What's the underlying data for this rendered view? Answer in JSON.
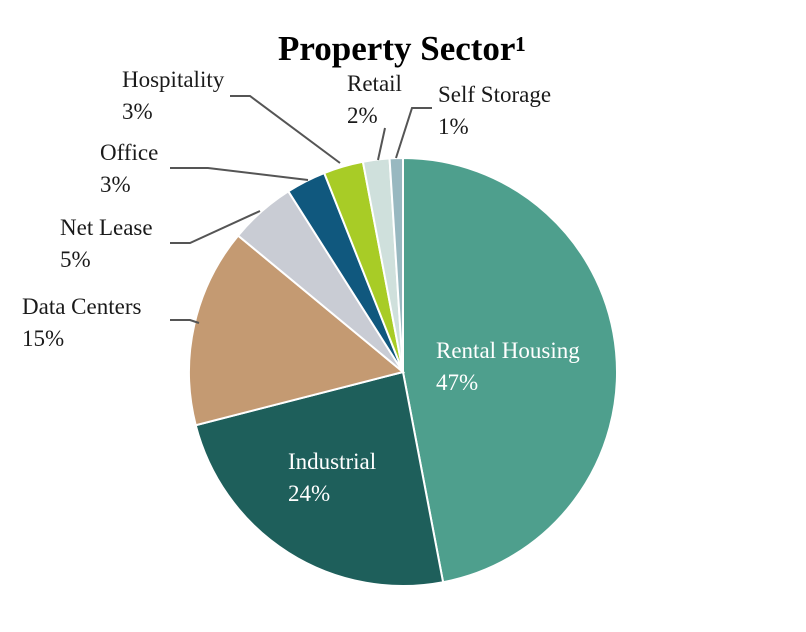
{
  "chart_data": {
    "type": "pie",
    "title": "Property Sector¹",
    "slices": [
      {
        "name": "Rental Housing",
        "value": 47,
        "label": "47%",
        "color": "#4e9f8d"
      },
      {
        "name": "Industrial",
        "value": 24,
        "label": "24%",
        "color": "#1e5f5b"
      },
      {
        "name": "Data Centers",
        "value": 15,
        "label": "15%",
        "color": "#c49a72"
      },
      {
        "name": "Net Lease",
        "value": 5,
        "label": "5%",
        "color": "#c9ccd4"
      },
      {
        "name": "Office",
        "value": 3,
        "label": "3%",
        "color": "#10587e"
      },
      {
        "name": "Hospitality",
        "value": 3,
        "label": "3%",
        "color": "#a8cc26"
      },
      {
        "name": "Retail",
        "value": 2,
        "label": "2%",
        "color": "#cfe0dc"
      },
      {
        "name": "Self Storage",
        "value": 1,
        "label": "1%",
        "color": "#98b8c0"
      }
    ]
  }
}
